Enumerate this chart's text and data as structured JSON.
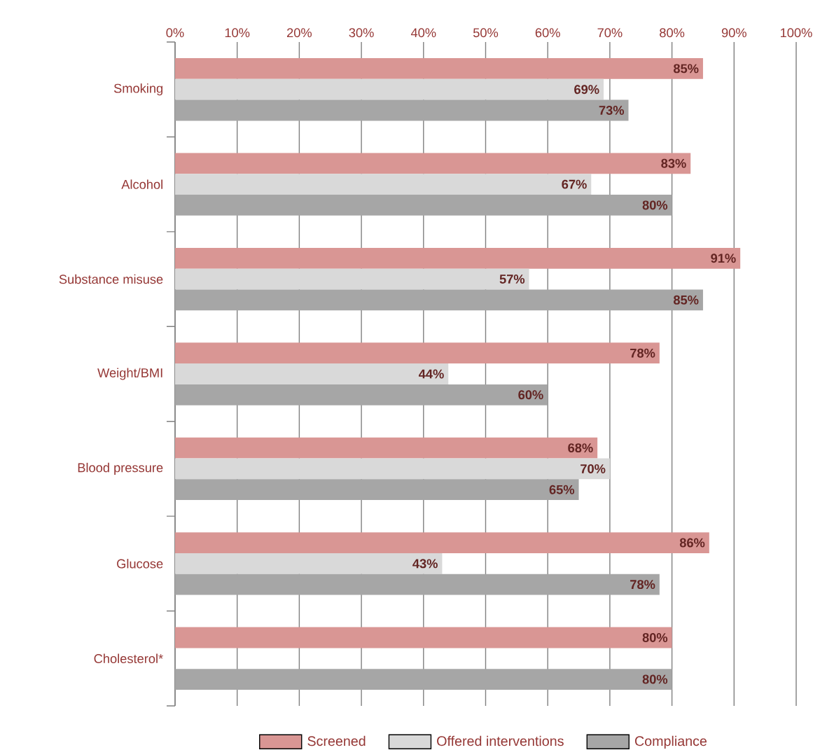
{
  "chart_data": {
    "type": "bar",
    "orientation": "horizontal",
    "categories": [
      "Smoking",
      "Alcohol",
      "Substance misuse",
      "Weight/BMI",
      "Blood pressure",
      "Glucose",
      "Cholesterol*"
    ],
    "series": [
      {
        "name": "Screened",
        "color": "#d99694",
        "values": [
          85,
          83,
          91,
          78,
          68,
          86,
          80
        ],
        "value_labels": [
          "85%",
          "83%",
          "91%",
          "78%",
          "68%",
          "86%",
          "80%"
        ]
      },
      {
        "name": "Offered interventions",
        "color": "#d9d9d9",
        "values": [
          69,
          67,
          57,
          44,
          70,
          43,
          null
        ],
        "value_labels": [
          "69%",
          "67%",
          "57%",
          "44%",
          "70%",
          "43%",
          null
        ]
      },
      {
        "name": "Compliance",
        "color": "#a6a6a6",
        "values": [
          73,
          80,
          85,
          60,
          65,
          78,
          80
        ],
        "value_labels": [
          "73%",
          "80%",
          "85%",
          "60%",
          "65%",
          "78%",
          "80%"
        ]
      }
    ],
    "xlim": [
      0,
      100
    ],
    "xticks": [
      {
        "value": 0,
        "label": "0%"
      },
      {
        "value": 10,
        "label": "10%"
      },
      {
        "value": 20,
        "label": "20%"
      },
      {
        "value": 30,
        "label": "30%"
      },
      {
        "value": 40,
        "label": "40%"
      },
      {
        "value": 50,
        "label": "50%"
      },
      {
        "value": 60,
        "label": "60%"
      },
      {
        "value": 70,
        "label": "70%"
      },
      {
        "value": 80,
        "label": "80%"
      },
      {
        "value": 90,
        "label": "90%"
      },
      {
        "value": 100,
        "label": "100%"
      }
    ],
    "grid": "x",
    "legend": "bottom"
  }
}
